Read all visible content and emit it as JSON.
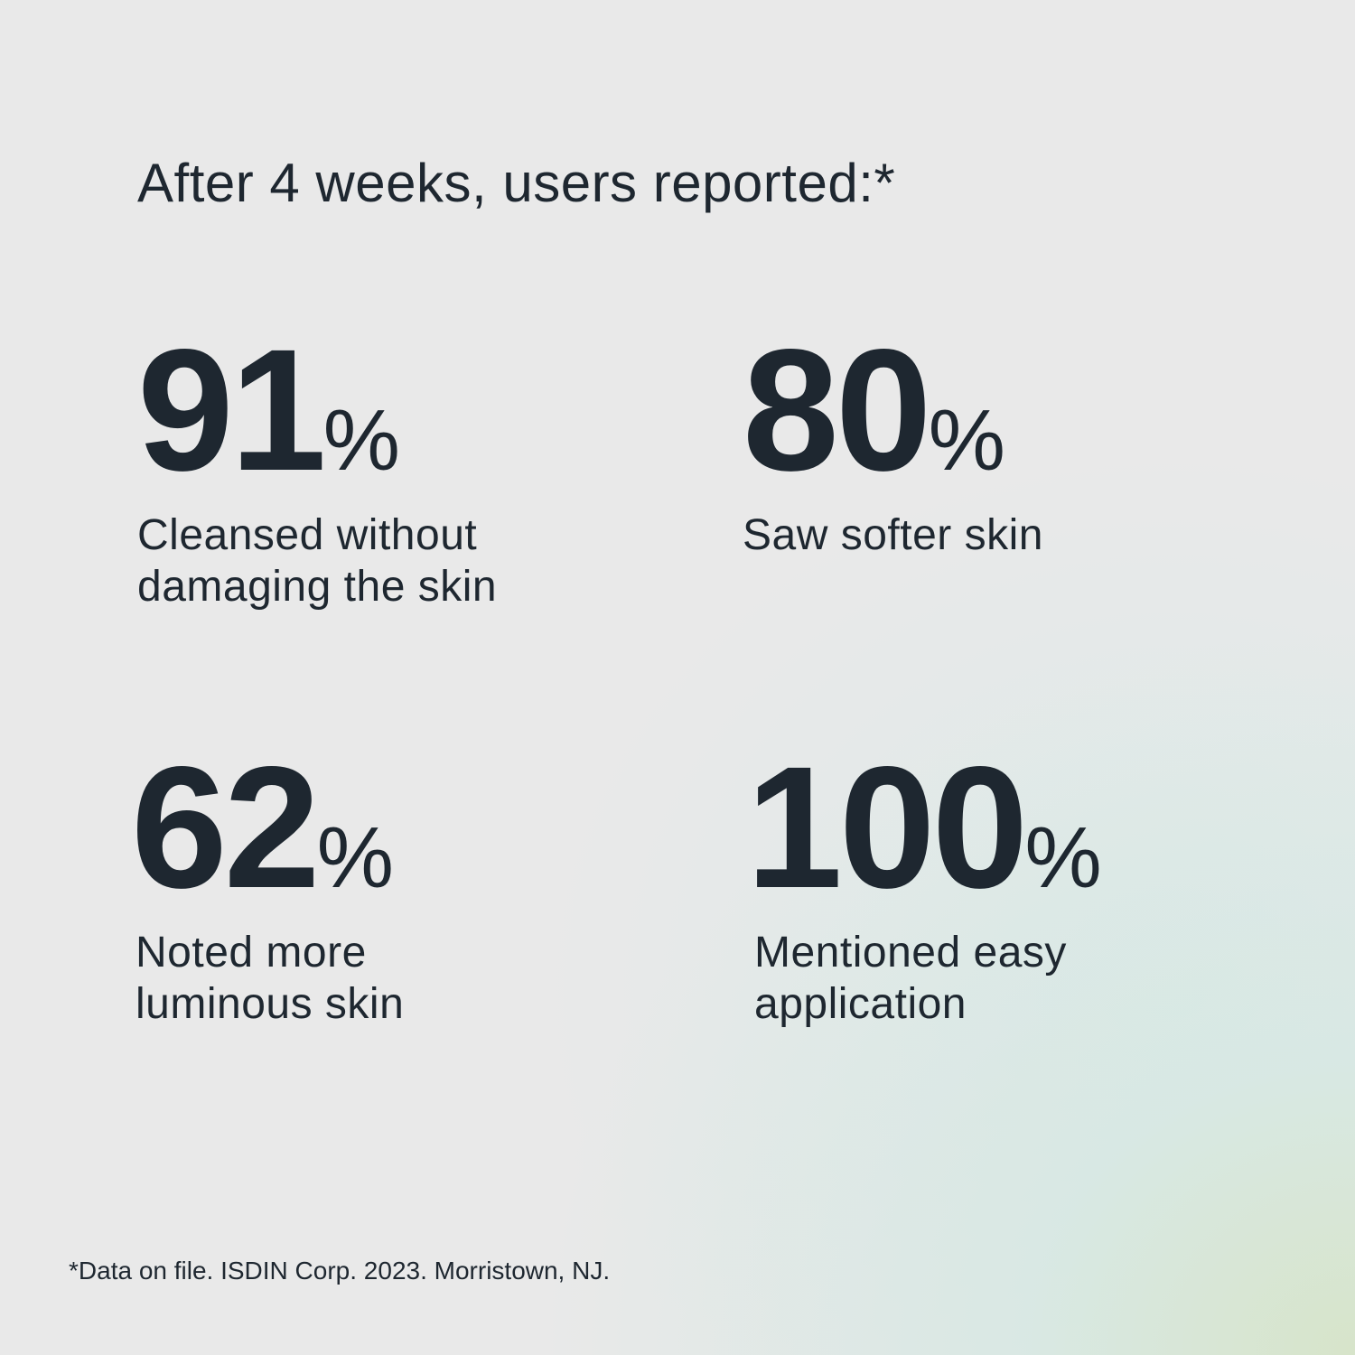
{
  "title": "After 4 weeks, users reported:*",
  "stats": [
    {
      "value": "91",
      "unit": "%",
      "label_lines": [
        "Cleansed without",
        "damaging the skin"
      ]
    },
    {
      "value": "80",
      "unit": "%",
      "label_lines": [
        "Saw softer skin"
      ]
    },
    {
      "value": "62",
      "unit": "%",
      "label_lines": [
        "Noted more",
        "luminous skin"
      ]
    },
    {
      "value": "100",
      "unit": "%",
      "label_lines": [
        "Mentioned easy",
        "application"
      ]
    }
  ],
  "footer": "*Data on file. ISDIN Corp. 2023. Morristown, NJ.",
  "colors": {
    "text": "#1e2730",
    "background": "#e9e9e9",
    "accent_gradient": "#d6e4c8"
  }
}
